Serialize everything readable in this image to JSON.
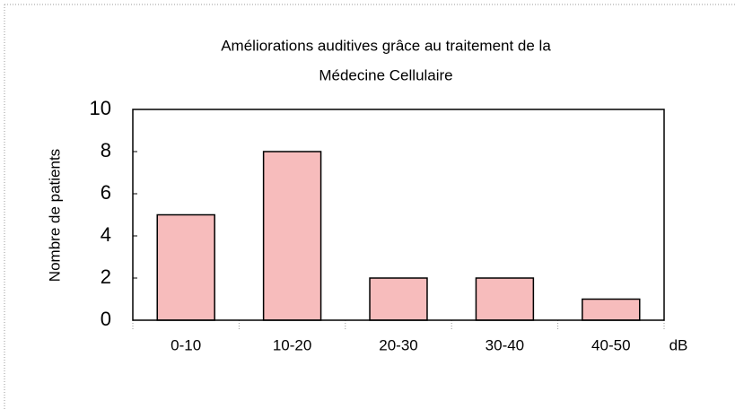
{
  "chart_data": {
    "type": "bar",
    "title": [
      "Améliorations auditives grâce au traitement de la",
      "Médecine Cellulaire"
    ],
    "y_label": "Nombre de patients",
    "x_label": "dB",
    "categories": [
      "0-10",
      "10-20",
      "20-30",
      "30-40",
      "40-50"
    ],
    "values": [
      5,
      8,
      2,
      2,
      1
    ],
    "color": "#f7bcbc",
    "ylim": [
      0,
      10
    ],
    "yticks": [
      0,
      2,
      4,
      6,
      8,
      10
    ],
    "grid": false
  }
}
